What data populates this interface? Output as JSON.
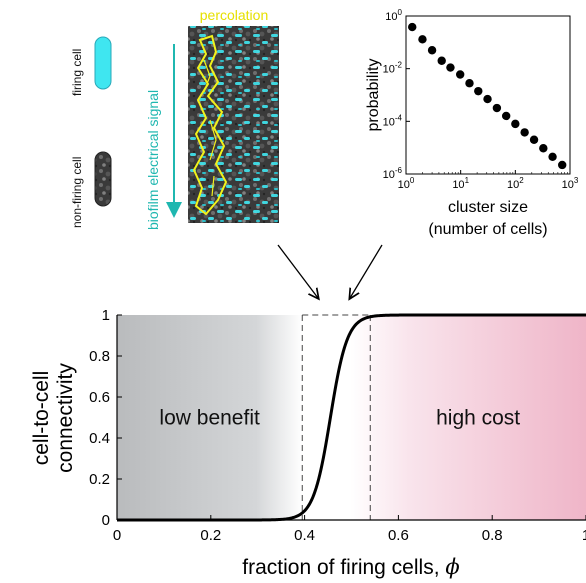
{
  "top_panel": {
    "firing_cell_label": "firing cell",
    "non_firing_cell_label": "non-firing cell",
    "signal_label": "biofilm electrical signal",
    "percolation_label": "percolation",
    "colors": {
      "firing": "#3fe6f0",
      "non_firing": "#333333",
      "signal": "#1fb7b0",
      "percolation": "#f2f21a"
    }
  },
  "chart_data": [
    {
      "type": "scatter",
      "title": "",
      "xlabel": "cluster size",
      "xlabel_line2": "(number of cells)",
      "ylabel": "probability",
      "x_scale": "log",
      "y_scale": "log",
      "xlim": [
        1,
        1000
      ],
      "ylim": [
        1e-06,
        1
      ],
      "x_ticks": [
        {
          "value": 1,
          "base": "10",
          "exp": "0"
        },
        {
          "value": 10,
          "base": "10",
          "exp": "1"
        },
        {
          "value": 100,
          "base": "10",
          "exp": "2"
        },
        {
          "value": 1000,
          "base": "10",
          "exp": "3"
        }
      ],
      "y_ticks": [
        {
          "value": 1,
          "base": "10",
          "exp": "0"
        },
        {
          "value": 0.01,
          "base": "10",
          "exp": "-2"
        },
        {
          "value": 0.0001,
          "base": "10",
          "exp": "-4"
        },
        {
          "value": 1e-06,
          "base": "10",
          "exp": "-6"
        }
      ],
      "x": [
        1.3,
        2.0,
        3.0,
        4.5,
        6.5,
        9.8,
        14.5,
        21,
        31,
        46,
        68,
        100,
        148,
        220,
        325,
        480,
        720
      ],
      "y": [
        0.38,
        0.13,
        0.05,
        0.02,
        0.011,
        0.006,
        0.0028,
        0.0014,
        0.0007,
        0.00032,
        0.00016,
        8e-05,
        3.8e-05,
        2e-05,
        9.5e-06,
        4.5e-06,
        2.2e-06
      ]
    },
    {
      "type": "line",
      "title": "",
      "xlabel": "fraction of firing cells, ",
      "xlabel_symbol": "ϕ",
      "ylabel": "cell-to-cell",
      "ylabel_line2": "connectivity",
      "xlim": [
        0,
        1
      ],
      "ylim": [
        0,
        1
      ],
      "x_ticks": [
        "0",
        "0.2",
        "0.4",
        "0.6",
        "0.8",
        "1"
      ],
      "y_ticks": [
        "0",
        "0.2",
        "0.4",
        "0.6",
        "0.8",
        "1"
      ],
      "transition": {
        "center": 0.455,
        "width": 0.018
      },
      "dashed_lines_x": [
        0.395,
        0.54
      ],
      "regions": [
        {
          "label": "low benefit",
          "x_start": 0,
          "x_end": 0.395,
          "color": "#c4c6c8"
        },
        {
          "label": "high cost",
          "x_start": 0.54,
          "x_end": 1,
          "color": "#eda8bf"
        }
      ],
      "series": [
        {
          "color": "#000000"
        }
      ]
    }
  ]
}
